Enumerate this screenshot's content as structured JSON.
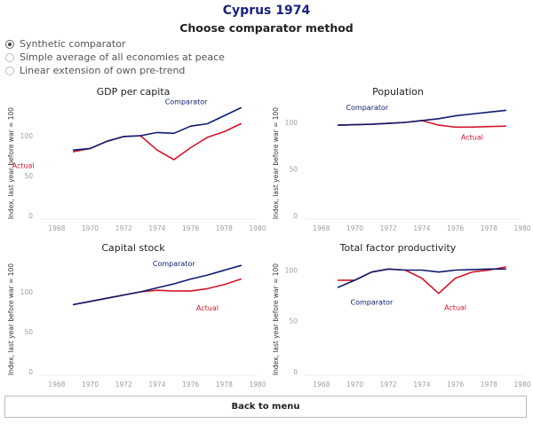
{
  "header": {
    "title": "Cyprus 1974",
    "subtitle": "Choose comparator method"
  },
  "options": [
    {
      "label": "Synthetic comparator",
      "selected": true
    },
    {
      "label": "Simple average of all economies at peace",
      "selected": false
    },
    {
      "label": "Linear extension of own pre-trend",
      "selected": false
    }
  ],
  "colors": {
    "comparator": "#0d1b6e",
    "actual": "#d7142b"
  },
  "back_button_label": "Back to menu",
  "chart_data": [
    {
      "type": "line",
      "title": "GDP per capita",
      "ylabel": "Index, last year before war = 100",
      "xlim": [
        1967,
        1980
      ],
      "ylim": [
        0,
        140
      ],
      "xticks": [
        1968,
        1970,
        1972,
        1974,
        1976,
        1978,
        1980
      ],
      "yticks": [
        0,
        50,
        100
      ],
      "x": [
        1969,
        1970,
        1971,
        1972,
        1973,
        1974,
        1975,
        1976,
        1977,
        1978,
        1979
      ],
      "series": [
        {
          "name": "Comparator",
          "values": [
            82,
            84,
            93,
            99,
            100,
            104,
            103,
            112,
            115,
            125,
            135
          ]
        },
        {
          "name": "Actual",
          "values": [
            80,
            84,
            93,
            99,
            100,
            82,
            70,
            85,
            98,
            105,
            115
          ]
        }
      ]
    },
    {
      "type": "line",
      "title": "Population",
      "ylabel": "Index, last year before war = 100",
      "xlim": [
        1967,
        1980
      ],
      "ylim": [
        0,
        120
      ],
      "xticks": [
        1968,
        1970,
        1972,
        1974,
        1976,
        1978,
        1980
      ],
      "yticks": [
        0,
        50,
        100
      ],
      "x": [
        1969,
        1970,
        1971,
        1972,
        1973,
        1974,
        1975,
        1976,
        1977,
        1978,
        1979
      ],
      "series": [
        {
          "name": "Comparator",
          "values": [
            97,
            97.5,
            98,
            99,
            100,
            102,
            104,
            107,
            109,
            111,
            113
          ]
        },
        {
          "name": "Actual",
          "values": [
            97,
            97.5,
            98,
            99,
            100,
            102,
            97,
            95,
            95,
            95.5,
            96
          ]
        }
      ]
    },
    {
      "type": "line",
      "title": "Capital stock",
      "ylabel": "Index, last year before war = 100",
      "xlim": [
        1967,
        1980
      ],
      "ylim": [
        0,
        140
      ],
      "xticks": [
        1968,
        1970,
        1972,
        1974,
        1976,
        1978,
        1980
      ],
      "yticks": [
        0,
        50,
        100
      ],
      "x": [
        1969,
        1970,
        1971,
        1972,
        1973,
        1974,
        1975,
        1976,
        1977,
        1978,
        1979
      ],
      "series": [
        {
          "name": "Comparator",
          "values": [
            84,
            88,
            92,
            96,
            100,
            105,
            110,
            116,
            121,
            127,
            133
          ]
        },
        {
          "name": "Actual",
          "values": [
            84,
            88,
            92,
            96,
            100,
            102,
            101,
            101,
            104,
            109,
            116
          ]
        }
      ]
    },
    {
      "type": "line",
      "title": "Total factor productivity",
      "ylabel": "Index, last year before war = 100",
      "xlim": [
        1967,
        1980
      ],
      "ylim": [
        0,
        110
      ],
      "xticks": [
        1968,
        1970,
        1972,
        1974,
        1976,
        1978,
        1980
      ],
      "yticks": [
        0,
        50,
        100
      ],
      "x": [
        1969,
        1970,
        1971,
        1972,
        1973,
        1974,
        1975,
        1976,
        1977,
        1978,
        1979
      ],
      "series": [
        {
          "name": "Comparator",
          "values": [
            83,
            90,
            98,
            101,
            100,
            100,
            98,
            100,
            100.5,
            101,
            101
          ]
        },
        {
          "name": "Actual",
          "values": [
            90,
            90,
            98,
            101,
            100,
            92,
            77,
            92,
            98,
            100,
            103
          ]
        }
      ]
    }
  ]
}
